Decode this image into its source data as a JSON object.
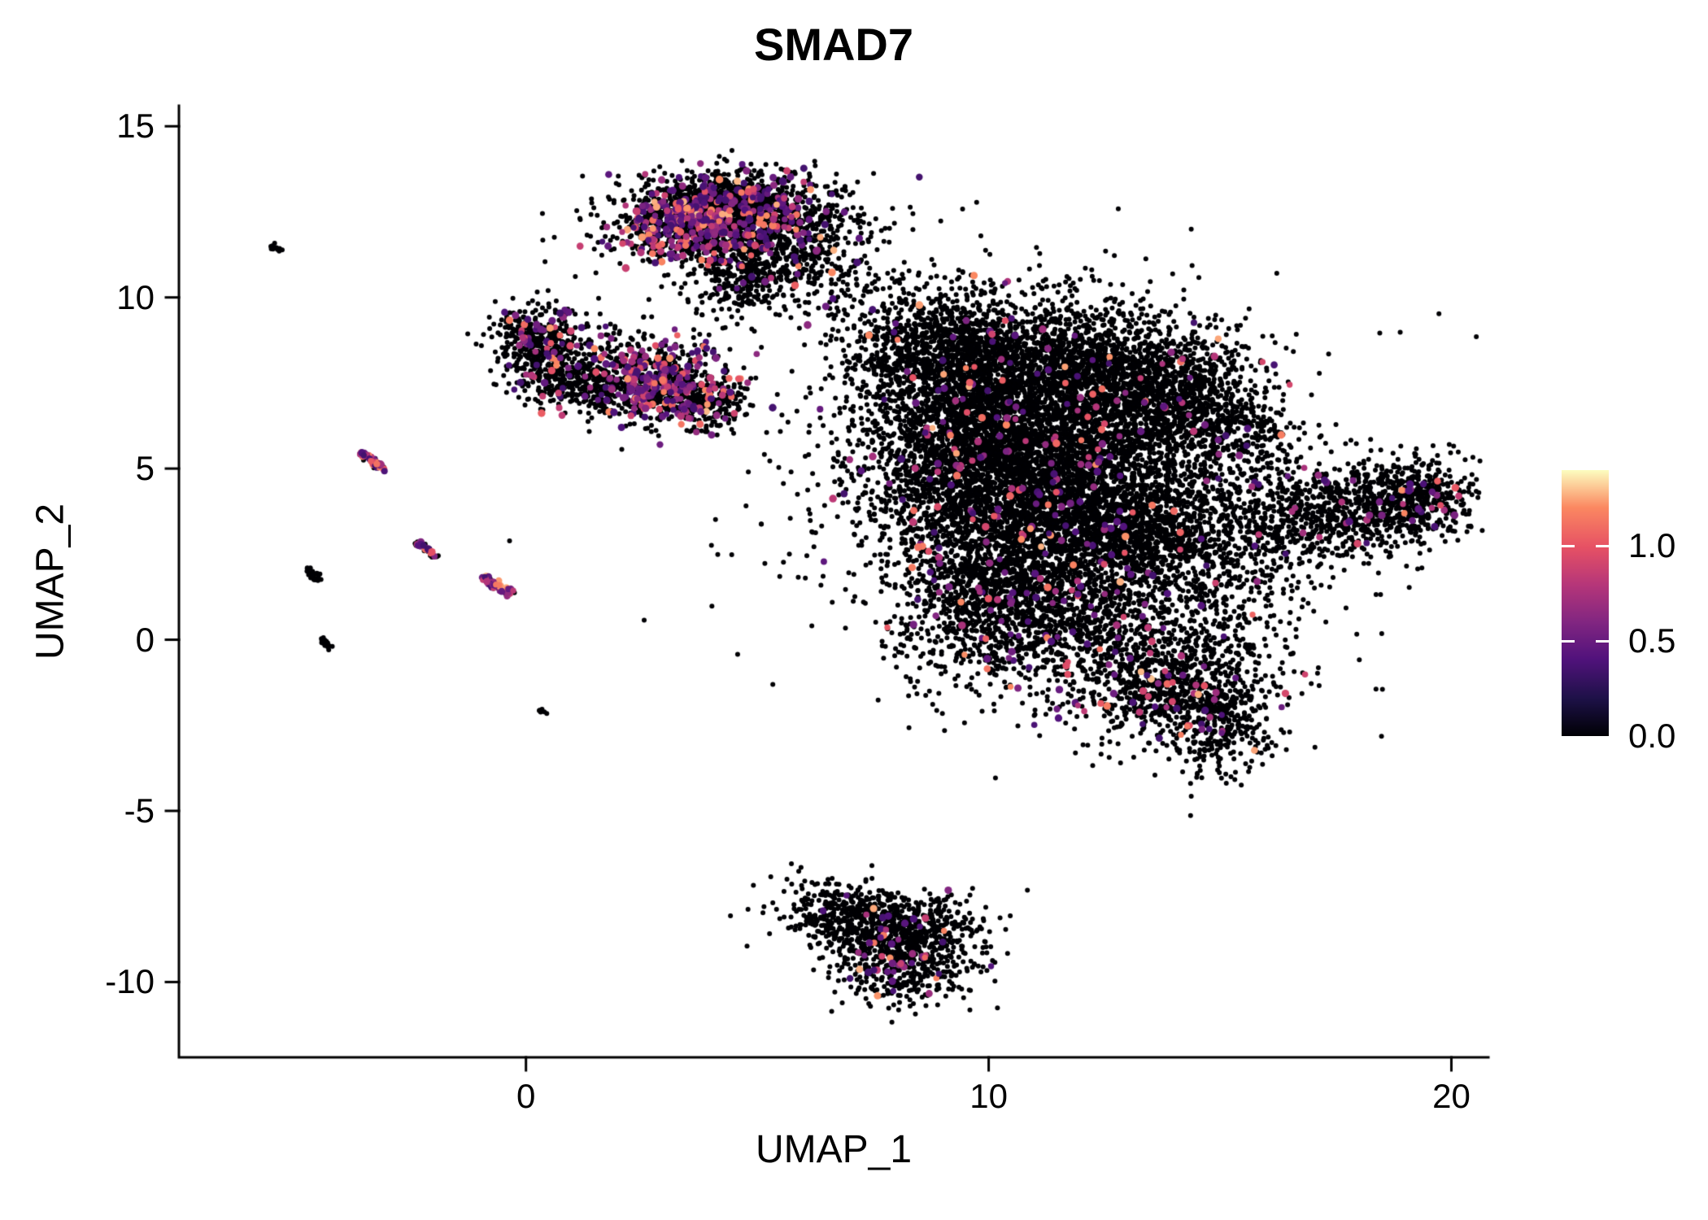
{
  "chart_data": {
    "type": "scatter",
    "title": "SMAD7",
    "xlabel": "UMAP_1",
    "ylabel": "UMAP_2",
    "xlim": [
      -7.5,
      20.8
    ],
    "ylim": [
      -12.2,
      15.6
    ],
    "x_tick_values": [
      0,
      10,
      20
    ],
    "x_tick_labels": [
      "0",
      "10",
      "20"
    ],
    "y_tick_values": [
      15,
      10,
      5,
      0,
      -5,
      -10
    ],
    "y_tick_labels": [
      "15",
      "10",
      "5",
      "0",
      "-5",
      "-10"
    ],
    "grid": false,
    "axis_color": "#000000",
    "background_color": "#ffffff",
    "point_color_zero": "#000004",
    "point_radius": 3.0,
    "colored_point_radius": 4.2,
    "seed": 42,
    "legend": {
      "position": "right",
      "vmin": 0.0,
      "vmax": 1.4,
      "tick_values": [
        1.0,
        0.5,
        0.0
      ],
      "tick_labels": [
        "1.0",
        "0.5",
        "0.0"
      ]
    },
    "colormap": {
      "name": "magma",
      "stops": [
        {
          "t": 0.0,
          "c": "#000004"
        },
        {
          "t": 0.14,
          "c": "#1d1147"
        },
        {
          "t": 0.29,
          "c": "#51127c"
        },
        {
          "t": 0.43,
          "c": "#822681"
        },
        {
          "t": 0.57,
          "c": "#b63679"
        },
        {
          "t": 0.71,
          "c": "#e65164"
        },
        {
          "t": 0.86,
          "c": "#fb8861"
        },
        {
          "t": 1.0,
          "c": "#fcfdbf"
        }
      ]
    },
    "clusters": [
      {
        "cx": 4.4,
        "cy": 12.6,
        "rx": 1.05,
        "ry": 0.5,
        "rot": 0,
        "n": 1100,
        "frac": 0.2
      },
      {
        "cx": 3.4,
        "cy": 12.0,
        "rx": 0.75,
        "ry": 0.55,
        "rot": 0,
        "n": 500,
        "frac": 0.3
      },
      {
        "cx": 5.3,
        "cy": 11.4,
        "rx": 0.75,
        "ry": 0.75,
        "rot": 0,
        "n": 450,
        "frac": 0.06
      },
      {
        "cx": 4.6,
        "cy": 10.4,
        "rx": 0.45,
        "ry": 0.55,
        "rot": 0,
        "n": 180,
        "frac": 0.05
      },
      {
        "cx": 4.5,
        "cy": 12.2,
        "rx": 1.7,
        "ry": 1.0,
        "rot": 0,
        "n": 260,
        "frac": 0.05
      },
      {
        "cx": 6.6,
        "cy": 11.6,
        "rx": 0.65,
        "ry": 0.85,
        "rot": 0,
        "n": 90,
        "frac": 0.02
      },
      {
        "cx": 7.3,
        "cy": 10.3,
        "rx": 0.7,
        "ry": 0.7,
        "rot": 0,
        "n": 80,
        "frac": 0.04
      },
      {
        "cx": 0.2,
        "cy": 9.0,
        "rx": 0.5,
        "ry": 0.45,
        "rot": 0,
        "n": 280,
        "frac": 0.12
      },
      {
        "cx": 0.5,
        "cy": 7.9,
        "rx": 0.5,
        "ry": 0.5,
        "rot": 0,
        "n": 260,
        "frac": 0.1
      },
      {
        "cx": 1.5,
        "cy": 7.3,
        "rx": 0.55,
        "ry": 0.4,
        "rot": 0,
        "n": 200,
        "frac": 0.06
      },
      {
        "cx": 2.9,
        "cy": 7.5,
        "rx": 0.7,
        "ry": 0.6,
        "rot": 0,
        "n": 650,
        "frac": 0.32
      },
      {
        "cx": 3.9,
        "cy": 6.9,
        "rx": 0.5,
        "ry": 0.38,
        "rot": 0,
        "n": 220,
        "frac": 0.08
      },
      {
        "cx": 1.8,
        "cy": 8.4,
        "rx": 0.85,
        "ry": 0.45,
        "rot": 0,
        "n": 90,
        "frac": 0.04
      },
      {
        "cx": 9.0,
        "cy": 8.3,
        "rx": 1.1,
        "ry": 0.95,
        "rot": 0,
        "n": 1300,
        "frac": 0.015
      },
      {
        "cx": 11.6,
        "cy": 7.9,
        "rx": 1.4,
        "ry": 1.05,
        "rot": 0,
        "n": 1700,
        "frac": 0.015
      },
      {
        "cx": 13.8,
        "cy": 7.3,
        "rx": 0.95,
        "ry": 0.95,
        "rot": 0,
        "n": 700,
        "frac": 0.02
      },
      {
        "cx": 15.2,
        "cy": 6.3,
        "rx": 0.75,
        "ry": 1.05,
        "rot": 20,
        "n": 450,
        "frac": 0.02
      },
      {
        "cx": 9.6,
        "cy": 5.6,
        "rx": 1.25,
        "ry": 1.15,
        "rot": 0,
        "n": 1600,
        "frac": 0.03
      },
      {
        "cx": 12.1,
        "cy": 5.2,
        "rx": 1.45,
        "ry": 1.25,
        "rot": 0,
        "n": 1800,
        "frac": 0.02
      },
      {
        "cx": 10.6,
        "cy": 3.2,
        "rx": 1.45,
        "ry": 1.15,
        "rot": 0,
        "n": 1500,
        "frac": 0.03
      },
      {
        "cx": 13.3,
        "cy": 3.0,
        "rx": 1.15,
        "ry": 0.95,
        "rot": 0,
        "n": 900,
        "frac": 0.02
      },
      {
        "cx": 9.9,
        "cy": 0.9,
        "rx": 0.95,
        "ry": 1.15,
        "rot": 0,
        "n": 700,
        "frac": 0.05
      },
      {
        "cx": 12.0,
        "cy": 0.6,
        "rx": 1.25,
        "ry": 0.85,
        "rot": 0,
        "n": 650,
        "frac": 0.03
      },
      {
        "cx": 13.9,
        "cy": -1.3,
        "rx": 1.15,
        "ry": 0.85,
        "rot": 0,
        "n": 900,
        "frac": 0.04
      },
      {
        "cx": 15.0,
        "cy": -2.5,
        "rx": 0.55,
        "ry": 0.75,
        "rot": 0,
        "n": 250,
        "frac": 0.03
      },
      {
        "cx": 11.5,
        "cy": 4.0,
        "rx": 3.1,
        "ry": 2.9,
        "rot": 0,
        "n": 900,
        "frac": 0.02
      },
      {
        "cx": 17.6,
        "cy": 3.7,
        "rx": 1.55,
        "ry": 0.7,
        "rot": 15,
        "n": 1100,
        "frac": 0.03
      },
      {
        "cx": 19.2,
        "cy": 4.2,
        "rx": 0.45,
        "ry": 0.55,
        "rot": 0,
        "n": 200,
        "frac": 0.06
      },
      {
        "cx": 15.4,
        "cy": 1.2,
        "rx": 0.75,
        "ry": 0.85,
        "rot": 0,
        "n": 130,
        "frac": 0.02
      },
      {
        "cx": 7.3,
        "cy": -8.2,
        "rx": 0.95,
        "ry": 0.55,
        "rot": -10,
        "n": 600,
        "frac": 0.03
      },
      {
        "cx": 8.2,
        "cy": -9.3,
        "rx": 0.75,
        "ry": 0.65,
        "rot": 0,
        "n": 550,
        "frac": 0.05
      },
      {
        "cx": 8.9,
        "cy": -8.3,
        "rx": 0.55,
        "ry": 0.45,
        "rot": 0,
        "n": 120,
        "frac": 0.02
      }
    ],
    "streaks": [
      {
        "x1": -3.55,
        "y1": 5.45,
        "x2": -3.05,
        "y2": 4.95,
        "n": 70,
        "frac": 0.45
      },
      {
        "x1": -2.35,
        "y1": 2.85,
        "x2": -1.95,
        "y2": 2.45,
        "n": 45,
        "frac": 0.35
      },
      {
        "x1": -0.95,
        "y1": 1.85,
        "x2": -0.35,
        "y2": 1.35,
        "n": 80,
        "frac": 0.45
      },
      {
        "x1": -4.75,
        "y1": 2.05,
        "x2": -4.45,
        "y2": 1.75,
        "n": 30,
        "frac": 0.0
      },
      {
        "x1": -4.45,
        "y1": 0.0,
        "x2": -4.25,
        "y2": -0.2,
        "n": 18,
        "frac": 0.0
      },
      {
        "x1": -5.5,
        "y1": 11.5,
        "x2": -5.3,
        "y2": 11.3,
        "n": 14,
        "frac": 0.0
      },
      {
        "x1": 0.3,
        "y1": -2.05,
        "x2": 0.4,
        "y2": -2.15,
        "n": 8,
        "frac": 0.0
      }
    ]
  }
}
